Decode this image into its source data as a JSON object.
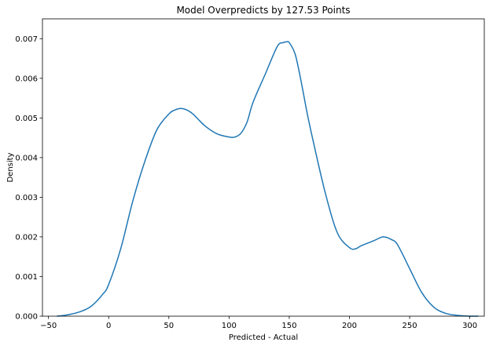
{
  "chart_data": {
    "type": "line",
    "title": "Model Overpredicts by 127.53 Points",
    "xlabel": "Predicted - Actual",
    "ylabel": "Density",
    "xlim": [
      -55,
      312
    ],
    "ylim": [
      0,
      0.0075
    ],
    "xticks": [
      -50,
      0,
      50,
      100,
      150,
      200,
      250,
      300
    ],
    "yticks": [
      0.0,
      0.001,
      0.002,
      0.003,
      0.004,
      0.005,
      0.006,
      0.007
    ],
    "ytick_labels": [
      "0.000",
      "0.001",
      "0.002",
      "0.003",
      "0.004",
      "0.005",
      "0.006",
      "0.007"
    ],
    "grid": false,
    "series": [
      {
        "color": "#1f77b4",
        "x": [
          -43,
          -35,
          -25,
          -15,
          -5,
          0,
          10,
          20,
          30,
          40,
          50,
          55,
          60,
          65,
          70,
          80,
          90,
          100,
          105,
          110,
          115,
          120,
          130,
          140,
          145,
          148,
          150,
          155,
          160,
          165,
          170,
          180,
          190,
          200,
          205,
          210,
          220,
          228,
          235,
          240,
          250,
          260,
          270,
          280,
          290,
          300,
          307
        ],
        "y": [
          0.0,
          3e-05,
          0.0001,
          0.00024,
          0.00055,
          0.0008,
          0.0017,
          0.0029,
          0.0039,
          0.0047,
          0.0051,
          0.0052,
          0.00524,
          0.0052,
          0.0051,
          0.0048,
          0.0046,
          0.00452,
          0.00452,
          0.00462,
          0.0049,
          0.0054,
          0.0061,
          0.0068,
          0.0069,
          0.00692,
          0.0069,
          0.0066,
          0.0059,
          0.0051,
          0.0044,
          0.0031,
          0.0021,
          0.00173,
          0.0017,
          0.00178,
          0.0019,
          0.002,
          0.00193,
          0.0018,
          0.0012,
          0.0006,
          0.00023,
          7e-05,
          2e-05,
          0.0,
          0.0
        ]
      }
    ]
  }
}
